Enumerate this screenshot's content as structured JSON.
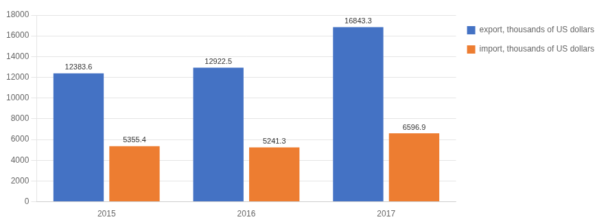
{
  "chart_data": {
    "type": "bar",
    "categories": [
      "2015",
      "2016",
      "2017"
    ],
    "series": [
      {
        "name": "export, thousands of US dollars",
        "color": "#4472C4",
        "values": [
          12383.6,
          12922.5,
          16843.3
        ]
      },
      {
        "name": "import, thousands of US dollars",
        "color": "#ED7D31",
        "values": [
          5355.4,
          5241.3,
          6596.9
        ]
      }
    ],
    "ylim": [
      0,
      18000
    ],
    "yticks": [
      0,
      2000,
      4000,
      6000,
      8000,
      10000,
      12000,
      14000,
      16000,
      18000
    ],
    "grid": true,
    "legend": "right",
    "data_labels": true
  }
}
